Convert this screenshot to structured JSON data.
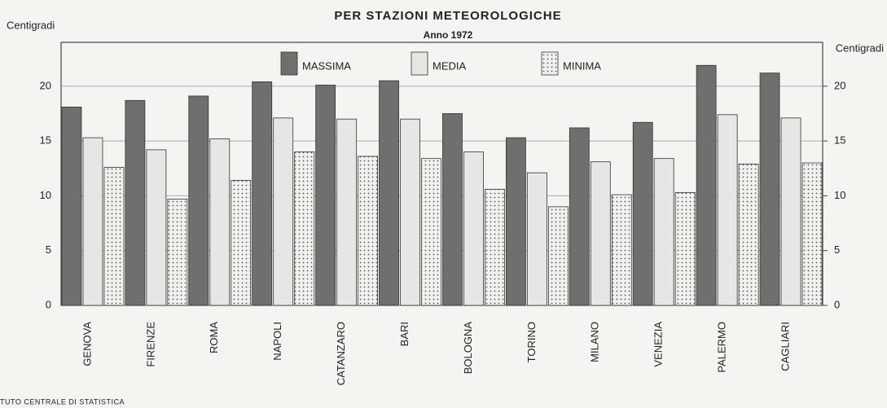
{
  "chart_data": {
    "type": "bar",
    "title": "PER STAZIONI METEOROLOGICHE",
    "subtitle": "Anno 1972",
    "y_label": "Centigradi",
    "y2_label": "Centigradi",
    "footer": "TUTO CENTRALE DI STATISTICA",
    "categories": [
      "GENOVA",
      "FIRENZE",
      "ROMA",
      "NAPOLI",
      "CATANZARO",
      "BARI",
      "BOLOGNA",
      "TORINO",
      "MILANO",
      "VENEZIA",
      "PALERMO",
      "CAGLIARI"
    ],
    "series": [
      {
        "name": "MASSIMA",
        "color": "#6f6f6f",
        "values": [
          18.1,
          18.7,
          19.1,
          20.4,
          20.1,
          20.5,
          17.5,
          15.3,
          16.2,
          16.7,
          21.9,
          21.2
        ]
      },
      {
        "name": "MEDIA",
        "color": "#e6e6e4",
        "values": [
          15.3,
          14.2,
          15.2,
          17.1,
          17.0,
          17.0,
          14.0,
          12.1,
          13.1,
          13.4,
          17.4,
          17.1
        ]
      },
      {
        "name": "MINIMA",
        "color": "#f0f0ec",
        "pattern": "dots",
        "values": [
          12.6,
          9.7,
          11.4,
          14.0,
          13.6,
          13.4,
          10.6,
          9.0,
          10.1,
          10.3,
          12.9,
          13.0
        ]
      }
    ],
    "ylim": [
      0,
      24
    ],
    "yticks": [
      0,
      5,
      10,
      15,
      20
    ],
    "y2lim": [
      0,
      24
    ],
    "y2ticks": [
      0,
      5,
      10,
      15,
      20
    ],
    "grid": true,
    "legend": "top"
  }
}
